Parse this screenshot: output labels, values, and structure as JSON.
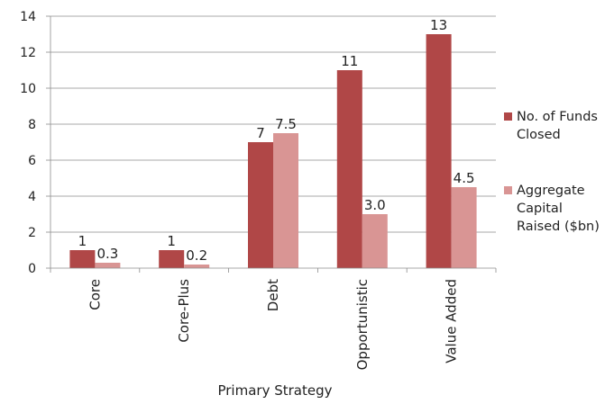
{
  "chart_data": {
    "type": "bar",
    "categories": [
      "Core",
      "Core-Plus",
      "Debt",
      "Opportunistic",
      "Value Added"
    ],
    "series": [
      {
        "name": "No. of Funds Closed",
        "values": [
          1,
          1,
          7,
          11,
          13
        ],
        "labels": [
          "1",
          "1",
          "7",
          "11",
          "13"
        ],
        "color": "#b04747"
      },
      {
        "name": "Aggregate Capital Raised ($bn)",
        "values": [
          0.3,
          0.2,
          7.5,
          3.0,
          4.5
        ],
        "labels": [
          "0.3",
          "0.2",
          "7.5",
          "3.0",
          "4.5"
        ],
        "color": "#d99594"
      }
    ],
    "xlabel": "Primary Strategy",
    "ylabel": "",
    "ylim": [
      0,
      14
    ],
    "yticks": [
      "0",
      "2",
      "4",
      "6",
      "8",
      "10",
      "12",
      "14"
    ],
    "grid": true,
    "legend": "right"
  },
  "legend": {
    "items": [
      {
        "lines": [
          "No. of Funds",
          "Closed"
        ]
      },
      {
        "lines": [
          "Aggregate",
          "Capital",
          "Raised ($bn)"
        ]
      }
    ]
  }
}
